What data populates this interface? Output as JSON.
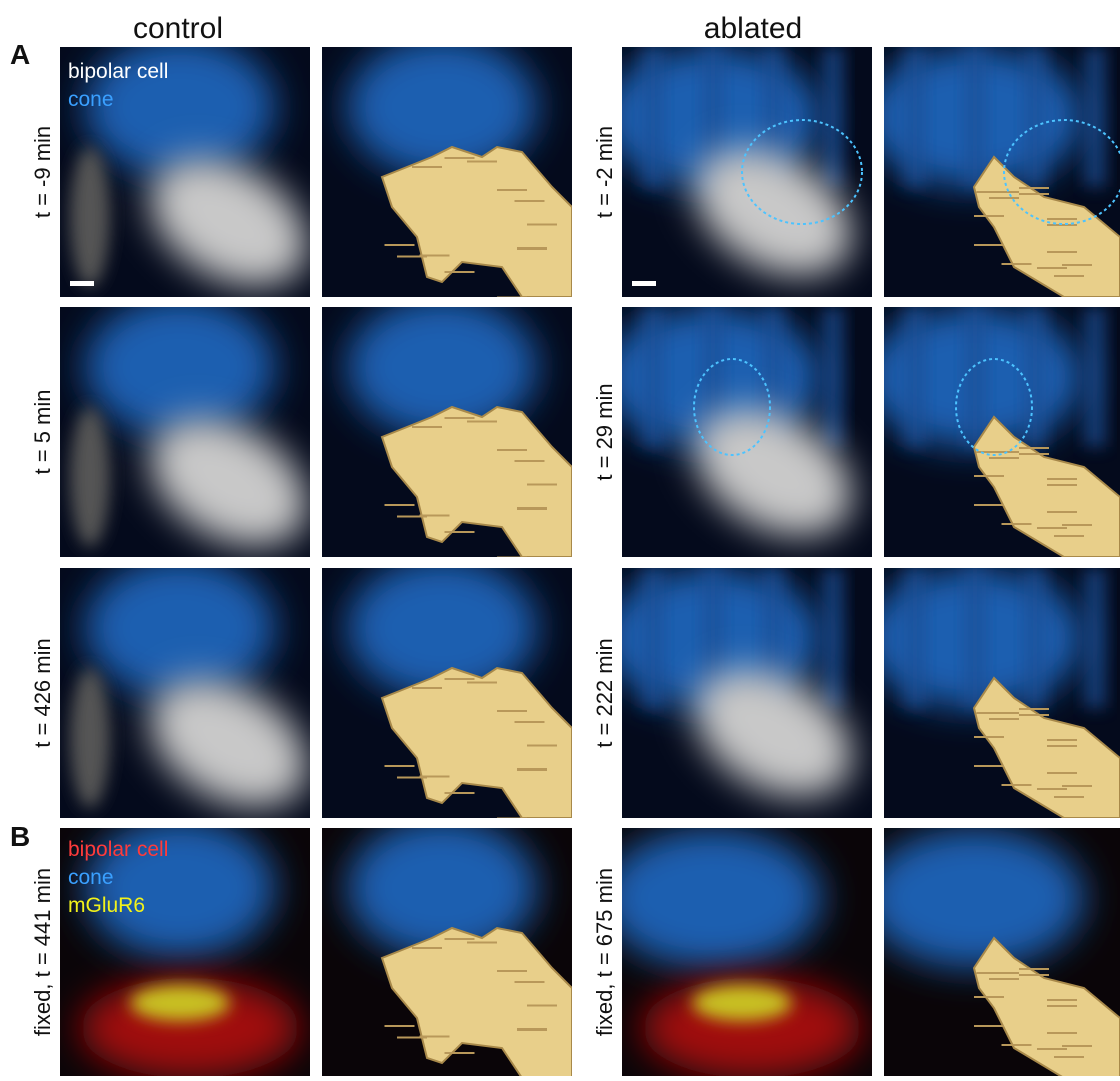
{
  "headers": {
    "left": "control",
    "right": "ablated"
  },
  "panel_a": {
    "letter": "A",
    "legend": [
      "bipolar cell",
      "cone"
    ],
    "rows": [
      {
        "control_label": "t = -9 min",
        "ablated_label": "t = -2 min"
      },
      {
        "control_label": "t = 5 min",
        "ablated_label": "t = 29 min"
      },
      {
        "control_label": "t = 426 min",
        "ablated_label": "t = 222 min"
      }
    ]
  },
  "panel_b": {
    "letter": "B",
    "legend": [
      "bipolar cell",
      "cone",
      "mGluR6"
    ],
    "control_label": "fixed, t = 441 min",
    "ablated_label": "fixed, t = 675 min"
  }
}
